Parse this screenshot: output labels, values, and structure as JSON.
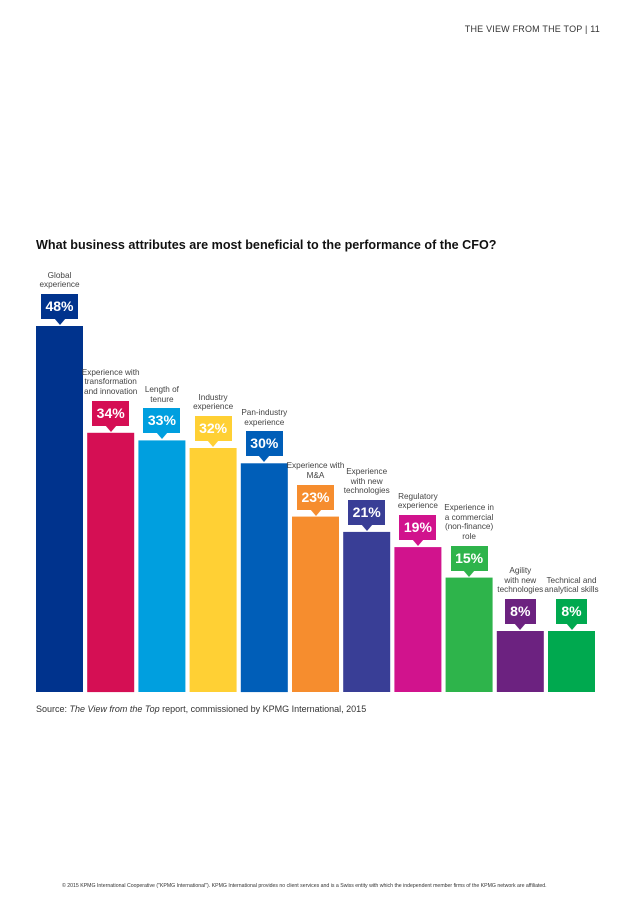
{
  "header": {
    "text": "THE VIEW FROM THE TOP | 11"
  },
  "chart_data": {
    "type": "bar",
    "title": "What business attributes are most beneficial to the performance of the CFO?",
    "categories": [
      [
        "Global",
        "experience"
      ],
      [
        "Experience with",
        "transformation",
        "and innovation"
      ],
      [
        "Length of",
        "tenure"
      ],
      [
        "Industry",
        "experience"
      ],
      [
        "Pan-industry",
        "experience"
      ],
      [
        "Experience with",
        "M&A"
      ],
      [
        "Experience",
        "with new",
        "technologies"
      ],
      [
        "Regulatory",
        "experience"
      ],
      [
        "Experience in",
        "a commercial",
        "(non-finance)",
        "role"
      ],
      [
        "Agility",
        "with new",
        "technologies"
      ],
      [
        "Technical and",
        "analytical skills"
      ]
    ],
    "values": [
      48,
      34,
      33,
      32,
      30,
      23,
      21,
      19,
      15,
      8,
      8
    ],
    "value_labels": [
      "48%",
      "34%",
      "33%",
      "32%",
      "30%",
      "23%",
      "21%",
      "19%",
      "15%",
      "8%",
      "8%"
    ],
    "colors": [
      "#00338D",
      "#D50F54",
      "#009FDF",
      "#FFD034",
      "#005EB8",
      "#F68D2E",
      "#393E96",
      "#D1138D",
      "#2EB44B",
      "#6C2280",
      "#00A94F"
    ],
    "ylim": [
      0,
      48
    ],
    "grid": false,
    "legend": "none"
  },
  "source": {
    "prefix": "Source: ",
    "italic": "The View from the Top",
    "suffix": " report, commissioned by KPMG International, 2015"
  },
  "footer": {
    "text": "© 2015 KPMG International Cooperative (\"KPMG International\"). KPMG International provides no client services and is a Swiss entity with which the independent member firms of the KPMG network are affiliated."
  }
}
